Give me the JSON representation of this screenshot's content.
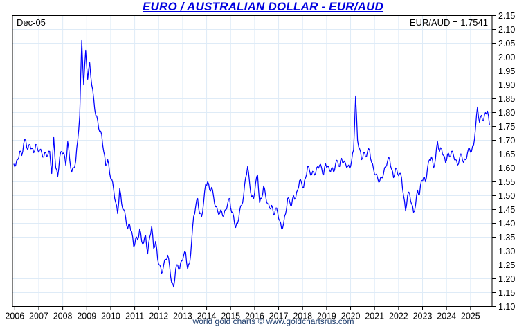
{
  "header": {
    "title": "EURO / AUSTRALIAN DOLLAR - EUR/AUD"
  },
  "chart": {
    "start_date_label": "Dec-05",
    "current_value_label": "EUR/AUD = 1.7541",
    "footer_credit": "world gold charts © www.goldchartsrus.com"
  },
  "colors": {
    "title_text": "#0000DE",
    "price_line": "#0000FF",
    "grid_line": "#DEEBF7",
    "plot_border": "#000000",
    "axis_text": "#000000",
    "footer_text": "#1A3A6B",
    "background": "#FFFFFF"
  },
  "chart_data": {
    "type": "line",
    "title": "EURO / AUSTRALIAN DOLLAR - EUR/AUD",
    "series_name": "EUR/AUD",
    "start_month": "2005-12",
    "end_month": "2025-10",
    "frequency": "monthly",
    "current_value": 1.7541,
    "ylim": [
      1.1,
      2.15
    ],
    "grid": true,
    "legend_position": "none",
    "y_tick_labels": [
      "2.15",
      "2.10",
      "2.05",
      "2.00",
      "1.95",
      "1.90",
      "1.85",
      "1.80",
      "1.75",
      "1.70",
      "1.65",
      "1.60",
      "1.55",
      "1.50",
      "1.45",
      "1.40",
      "1.35",
      "1.30",
      "1.25",
      "1.20",
      "1.15",
      "1.10"
    ],
    "x_tick_labels": [
      "2006",
      "2007",
      "2008",
      "2009",
      "2010",
      "2011",
      "2012",
      "2013",
      "2014",
      "2015",
      "2016",
      "2017",
      "2018",
      "2019",
      "2020",
      "2021",
      "2022",
      "2023",
      "2024",
      "2025"
    ],
    "monthly_values": [
      1.615,
      1.61,
      1.63,
      1.66,
      1.645,
      1.69,
      1.7,
      1.665,
      1.685,
      1.67,
      1.655,
      1.685,
      1.665,
      1.665,
      1.655,
      1.64,
      1.655,
      1.645,
      1.66,
      1.58,
      1.71,
      1.6,
      1.57,
      1.64,
      1.66,
      1.655,
      1.61,
      1.695,
      1.63,
      1.585,
      1.6,
      1.625,
      1.7,
      1.79,
      2.06,
      1.9,
      2.025,
      1.92,
      1.98,
      1.9,
      1.85,
      1.79,
      1.77,
      1.73,
      1.72,
      1.66,
      1.61,
      1.63,
      1.58,
      1.56,
      1.52,
      1.475,
      1.435,
      1.525,
      1.47,
      1.45,
      1.42,
      1.38,
      1.395,
      1.37,
      1.315,
      1.345,
      1.34,
      1.38,
      1.335,
      1.33,
      1.355,
      1.29,
      1.35,
      1.39,
      1.31,
      1.335,
      1.27,
      1.25,
      1.22,
      1.25,
      1.27,
      1.285,
      1.245,
      1.185,
      1.17,
      1.235,
      1.25,
      1.235,
      1.265,
      1.285,
      1.295,
      1.235,
      1.255,
      1.335,
      1.425,
      1.46,
      1.49,
      1.435,
      1.425,
      1.475,
      1.54,
      1.55,
      1.52,
      1.53,
      1.495,
      1.46,
      1.445,
      1.435,
      1.445,
      1.425,
      1.45,
      1.47,
      1.49,
      1.44,
      1.425,
      1.385,
      1.4,
      1.445,
      1.465,
      1.5,
      1.565,
      1.605,
      1.545,
      1.495,
      1.49,
      1.545,
      1.575,
      1.475,
      1.49,
      1.535,
      1.5,
      1.47,
      1.455,
      1.465,
      1.43,
      1.455,
      1.44,
      1.41,
      1.38,
      1.4,
      1.435,
      1.49,
      1.48,
      1.465,
      1.5,
      1.49,
      1.52,
      1.555,
      1.545,
      1.53,
      1.565,
      1.605,
      1.59,
      1.575,
      1.585,
      1.58,
      1.605,
      1.61,
      1.6,
      1.575,
      1.615,
      1.605,
      1.59,
      1.6,
      1.585,
      1.615,
      1.625,
      1.605,
      1.635,
      1.62,
      1.615,
      1.605,
      1.6,
      1.625,
      1.665,
      1.86,
      1.7,
      1.67,
      1.63,
      1.655,
      1.64,
      1.66,
      1.665,
      1.62,
      1.595,
      1.575,
      1.565,
      1.55,
      1.565,
      1.58,
      1.605,
      1.625,
      1.635,
      1.595,
      1.565,
      1.6,
      1.58,
      1.58,
      1.565,
      1.5,
      1.445,
      1.5,
      1.51,
      1.47,
      1.44,
      1.465,
      1.52,
      1.505,
      1.555,
      1.565,
      1.55,
      1.6,
      1.63,
      1.64,
      1.6,
      1.635,
      1.695,
      1.66,
      1.67,
      1.645,
      1.62,
      1.65,
      1.64,
      1.66,
      1.645,
      1.63,
      1.61,
      1.635,
      1.65,
      1.62,
      1.63,
      1.655,
      1.67,
      1.66,
      1.68,
      1.745,
      1.82,
      1.765,
      1.79,
      1.77,
      1.8,
      1.805,
      1.754
    ]
  }
}
